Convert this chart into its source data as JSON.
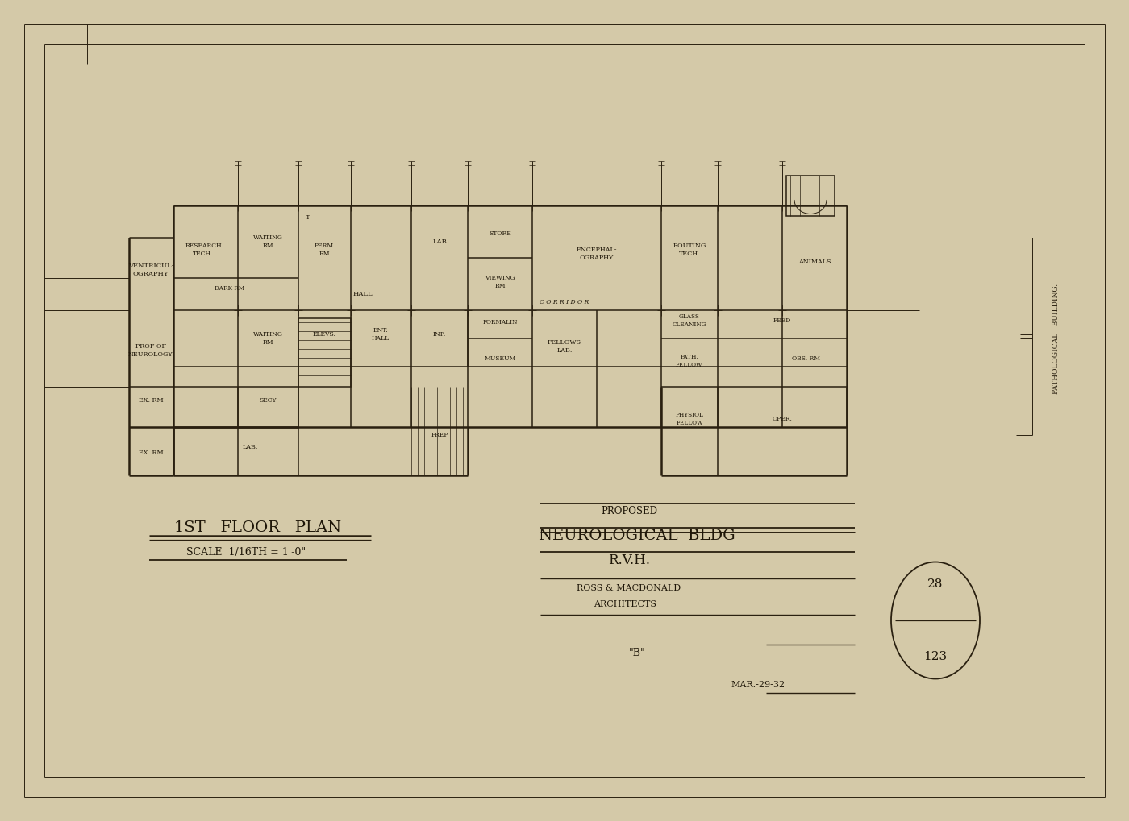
{
  "bg_color": "#d4c9a8",
  "line_color": "#2a2010",
  "title_line1": "PROPOSED",
  "title_line2": "NEUROLOGICAL  BLDG",
  "title_line3": "R.V.H.",
  "title_line4": "ROSS & MACDONALD",
  "title_line5": "ARCHITECTS",
  "floor_plan_label": "1ST   FLOOR   PLAN",
  "scale_label": "SCALE  1/16TH = 1'-0\"",
  "date_label": "MAR.-29-32",
  "sheet_num_top": "28",
  "sheet_num_bot": "123",
  "sheet_label": "\"B\"",
  "pathological_label": "PATHOLOGICAL   BUILDING.",
  "corridor_label": "C O R R I D O R"
}
